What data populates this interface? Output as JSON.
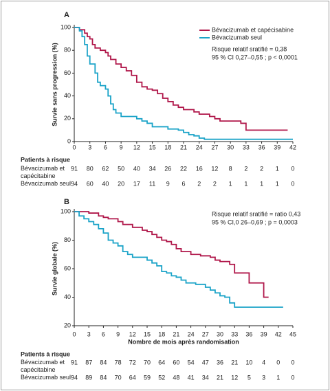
{
  "chart_data": [
    {
      "type": "line",
      "step": true,
      "panel_label": "A",
      "ylabel": "Survie sans progression (%)",
      "xlim": [
        0,
        42
      ],
      "xticks": [
        0,
        3,
        6,
        9,
        12,
        15,
        18,
        21,
        24,
        27,
        30,
        33,
        36,
        39,
        42
      ],
      "ylim": [
        0,
        100
      ],
      "yticks": [
        0,
        20,
        40,
        60,
        80,
        100
      ],
      "legend": "top-right",
      "series": [
        {
          "name": "Bévacizumab et capécisabine",
          "color": "#b0174a",
          "x": [
            0,
            1,
            2,
            2.5,
            3,
            3.5,
            4,
            5,
            6,
            6.5,
            7,
            8,
            9,
            10,
            11,
            12,
            13,
            14,
            15,
            16,
            17,
            18,
            19,
            20,
            21,
            23,
            24,
            26,
            27,
            28,
            32,
            33,
            41
          ],
          "values": [
            100,
            98,
            95,
            92,
            90,
            85,
            82,
            80,
            78,
            75,
            72,
            68,
            65,
            62,
            58,
            52,
            48,
            46,
            45,
            42,
            38,
            35,
            32,
            30,
            28,
            26,
            24,
            22,
            20,
            18,
            16,
            10,
            10
          ]
        },
        {
          "name": "Bévacizumab seul",
          "color": "#1aa3c8",
          "x": [
            0,
            1,
            1.5,
            2,
            2.5,
            3,
            4,
            4.5,
            5,
            6,
            6.5,
            7,
            7.5,
            8,
            9,
            12,
            13,
            14,
            15,
            18,
            20,
            21,
            22,
            23,
            24,
            25,
            42
          ],
          "values": [
            100,
            97,
            92,
            85,
            75,
            68,
            60,
            52,
            49,
            46,
            40,
            33,
            28,
            25,
            22,
            20,
            18,
            16,
            13,
            11,
            10,
            8,
            6,
            5,
            3,
            2,
            2
          ]
        }
      ],
      "annotations": [
        "Risque relatif sratifié =  0,38",
        "95 % CI 0,27–0,55 ; p < 0,0001"
      ],
      "risk_table": {
        "title": "Patients à risque",
        "rows": [
          {
            "label": "Bévacizumab et capécitabine",
            "values": [
              91,
              80,
              62,
              50,
              40,
              34,
              26,
              22,
              16,
              12,
              8,
              2,
              2,
              1,
              0
            ]
          },
          {
            "label": "Bévacizumab seul",
            "values": [
              94,
              60,
              40,
              20,
              17,
              11,
              9,
              6,
              2,
              2,
              1,
              1,
              1,
              1,
              0
            ]
          }
        ]
      }
    },
    {
      "type": "line",
      "step": true,
      "panel_label": "B",
      "ylabel": "Survie globale (%)",
      "xlabel": "Nombre de mois après randomisation",
      "xlim": [
        0,
        45
      ],
      "xticks": [
        0,
        3,
        6,
        9,
        12,
        15,
        18,
        21,
        24,
        27,
        30,
        33,
        36,
        39,
        42,
        45
      ],
      "ylim": [
        20,
        100
      ],
      "yticks": [
        20,
        40,
        60,
        80,
        100
      ],
      "series": [
        {
          "name": "Bévacizumab et capécitabine",
          "color": "#b0174a",
          "x": [
            0,
            3,
            5,
            6,
            7,
            9,
            10,
            12,
            14,
            15,
            16,
            17,
            18,
            19,
            20,
            21,
            22,
            24,
            26,
            28,
            29,
            30,
            32,
            33,
            35,
            36,
            38,
            39,
            40
          ],
          "values": [
            100,
            99,
            97,
            96,
            95,
            93,
            91,
            89,
            87,
            86,
            84,
            82,
            80,
            79,
            77,
            74,
            72,
            70,
            69,
            68,
            66,
            65,
            63,
            57,
            57,
            50,
            50,
            40,
            40
          ]
        },
        {
          "name": "Bévacizumab seul",
          "color": "#1aa3c8",
          "x": [
            0,
            1,
            2,
            3,
            4,
            5,
            6,
            7,
            8,
            9,
            10,
            11,
            12,
            14,
            15,
            16,
            17,
            18,
            19,
            20,
            21,
            22,
            23,
            25,
            27,
            28,
            29,
            30,
            31,
            32,
            33,
            43
          ],
          "values": [
            100,
            97,
            95,
            93,
            91,
            88,
            85,
            80,
            78,
            76,
            72,
            70,
            68,
            68,
            66,
            64,
            62,
            58,
            57,
            55,
            54,
            52,
            50,
            49,
            47,
            45,
            43,
            41,
            40,
            36,
            33,
            33
          ]
        }
      ],
      "annotations": [
        "Risque relatif sratifié =  ratio 0,43",
        "95 % CI,0 26–0,69 ; p = 0,0003"
      ],
      "risk_table": {
        "title": "Patients à risque",
        "rows": [
          {
            "label": "Bévacizumab et capécitabine",
            "values": [
              91,
              87,
              84,
              78,
              72,
              70,
              64,
              60,
              54,
              47,
              36,
              21,
              10,
              4,
              0,
              0
            ]
          },
          {
            "label": "Bévacizumab seul",
            "values": [
              94,
              89,
              84,
              70,
              64,
              59,
              52,
              48,
              41,
              34,
              21,
              12,
              5,
              3,
              1,
              0
            ]
          }
        ]
      }
    }
  ]
}
